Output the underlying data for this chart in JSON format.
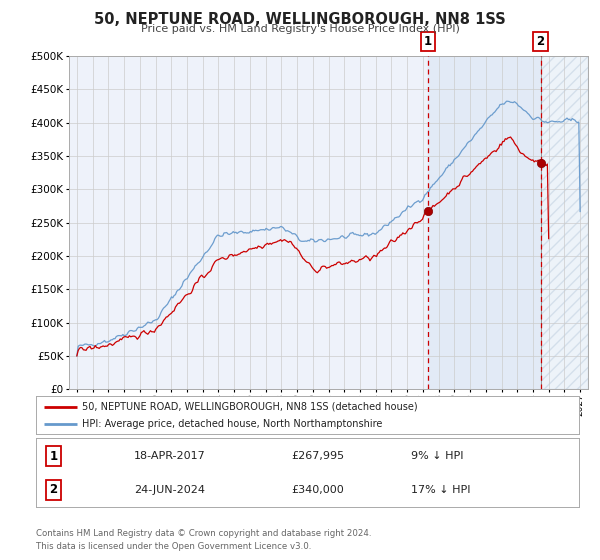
{
  "title": "50, NEPTUNE ROAD, WELLINGBOROUGH, NN8 1SS",
  "subtitle": "Price paid vs. HM Land Registry's House Price Index (HPI)",
  "legend_line1": "50, NEPTUNE ROAD, WELLINGBOROUGH, NN8 1SS (detached house)",
  "legend_line2": "HPI: Average price, detached house, North Northamptonshire",
  "annotation1_label": "1",
  "annotation1_date": "18-APR-2017",
  "annotation1_price": "£267,995",
  "annotation1_hpi": "9% ↓ HPI",
  "annotation1_year": 2017.3,
  "annotation1_value": 267995,
  "annotation2_label": "2",
  "annotation2_date": "24-JUN-2024",
  "annotation2_price": "£340,000",
  "annotation2_hpi": "17% ↓ HPI",
  "annotation2_year": 2024.48,
  "annotation2_value": 340000,
  "footer1": "Contains HM Land Registry data © Crown copyright and database right 2024.",
  "footer2": "This data is licensed under the Open Government Licence v3.0.",
  "ylim": [
    0,
    500000
  ],
  "yticks": [
    0,
    50000,
    100000,
    150000,
    200000,
    250000,
    300000,
    350000,
    400000,
    450000,
    500000
  ],
  "xlim_start": 1994.5,
  "xlim_end": 2027.5,
  "red_line_color": "#cc0000",
  "blue_line_color": "#6699cc",
  "dot_color": "#aa0000",
  "vline_color": "#cc0000",
  "grid_color": "#cccccc",
  "plot_bg_color": "#eef2fa",
  "shade_color": "#dde8f5",
  "hatch_bg_color": "#dce8f5",
  "annotation_box_color": "#cc0000",
  "border_color": "#aaaaaa"
}
